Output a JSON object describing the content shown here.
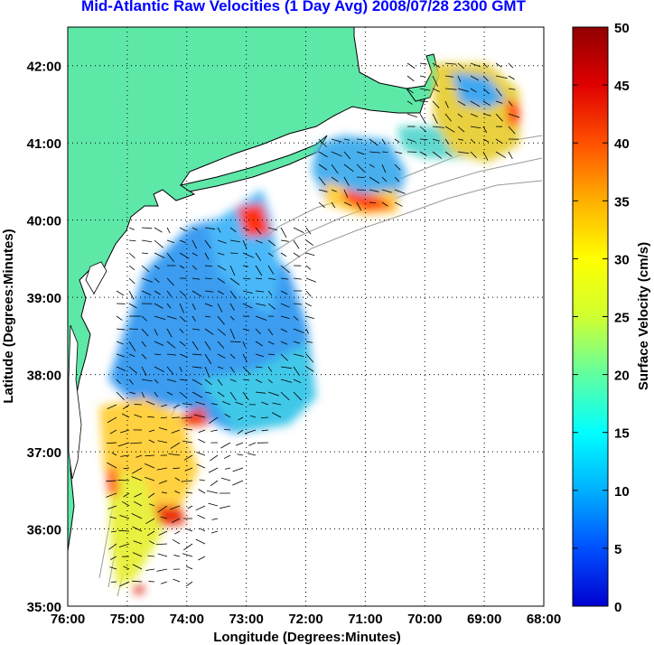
{
  "title": "Mid-Atlantic Raw Velocities (1 Day Avg) 2008/07/28 2300 GMT",
  "map": {
    "xlabel": "Longitude (Degrees:Minutes)",
    "ylabel": "Latitude (Degrees:Minutes)",
    "x_ticks": [
      "76:00",
      "75:00",
      "74:00",
      "73:00",
      "72:00",
      "71:00",
      "70:00",
      "69:00",
      "68:00"
    ],
    "y_ticks": [
      "42:00",
      "41:00",
      "40:00",
      "39:00",
      "38:00",
      "37:00",
      "36:00",
      "35:00"
    ],
    "lon_range": [
      -76,
      -68
    ],
    "lat_range": [
      35,
      42.5
    ],
    "grid": "dotted",
    "land_color": "#5ee8a8",
    "ocean_color": "#ffffff"
  },
  "colorbar": {
    "label": "Surface Velocity (cm/s)",
    "ticks": [
      "50",
      "45",
      "40",
      "35",
      "30",
      "25",
      "20",
      "15",
      "10",
      "5",
      "0"
    ],
    "range": [
      0,
      50
    ],
    "colors": [
      "#0000d0",
      "#0050ff",
      "#00b0ff",
      "#00ffff",
      "#60ffa0",
      "#d0ff30",
      "#ffff00",
      "#ffb000",
      "#ff5000",
      "#e00000",
      "#900000"
    ]
  }
}
